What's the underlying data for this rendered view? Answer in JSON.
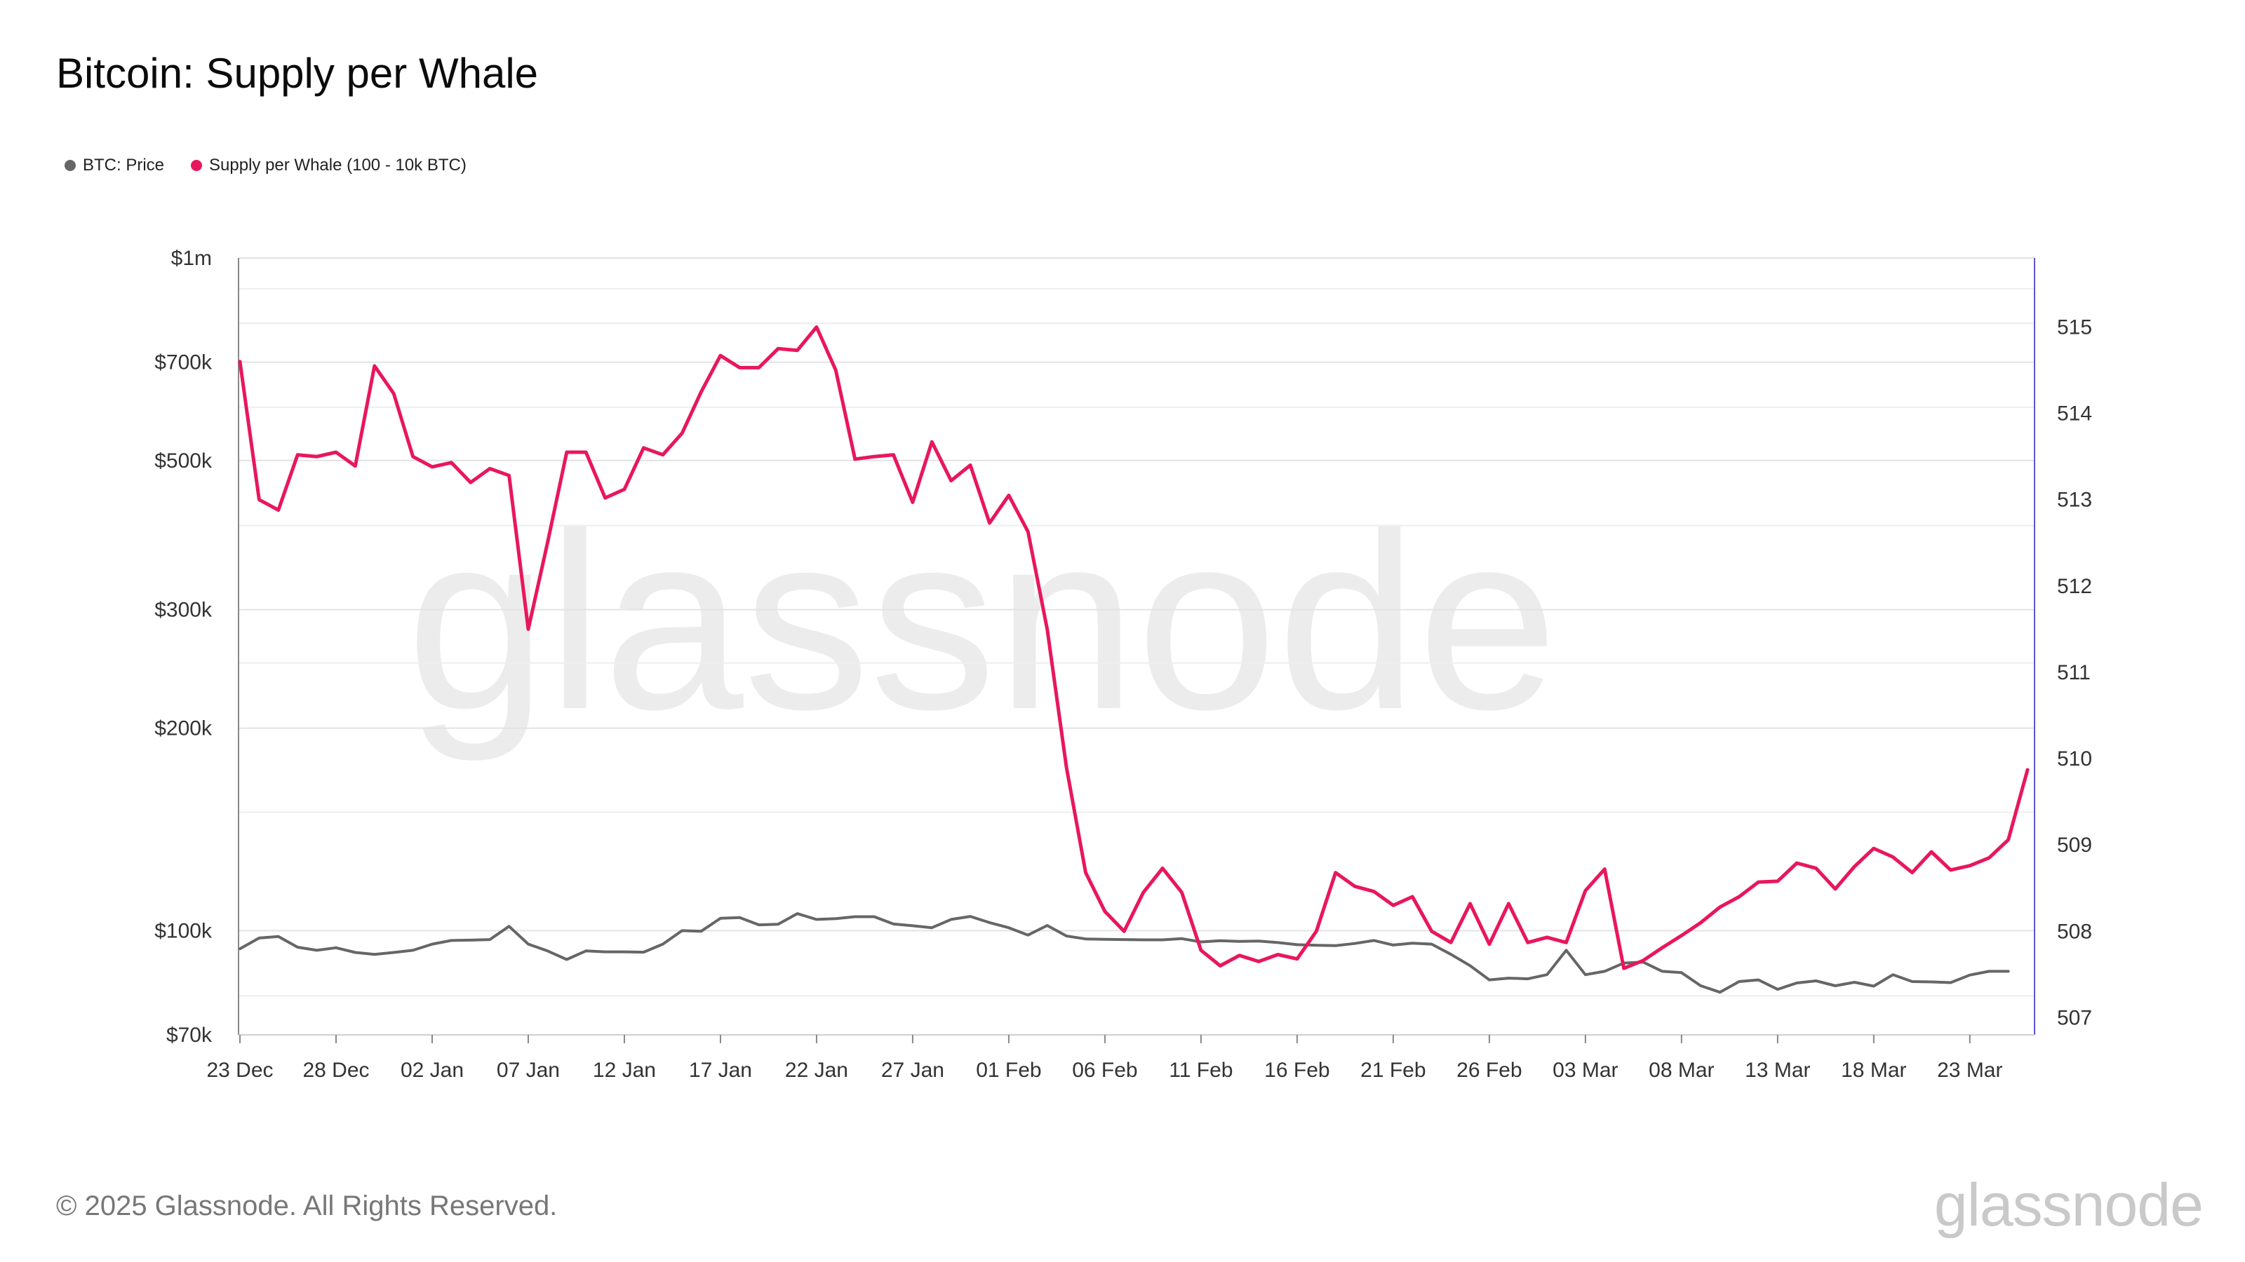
{
  "title": "Bitcoin: Supply per Whale",
  "legend": [
    {
      "label": "BTC: Price",
      "color": "#666666"
    },
    {
      "label": "Supply per Whale (100 - 10k BTC)",
      "color": "#e8175d"
    }
  ],
  "watermark": "glassnode",
  "footer": {
    "copyright": "© 2025 Glassnode. All Rights Reserved.",
    "logo": "glassnode"
  },
  "chart_data": {
    "type": "line",
    "x_start": "2024-12-23",
    "x_ticks": [
      "23 Dec",
      "28 Dec",
      "02 Jan",
      "07 Jan",
      "12 Jan",
      "17 Jan",
      "22 Jan",
      "27 Jan",
      "01 Feb",
      "06 Feb",
      "11 Feb",
      "16 Feb",
      "21 Feb",
      "26 Feb",
      "03 Mar",
      "08 Mar",
      "13 Mar",
      "18 Mar",
      "23 Mar"
    ],
    "y_left": {
      "scale": "log",
      "range": [
        70000,
        1000000
      ],
      "ticks": [
        {
          "value": 70000,
          "label": "$70k"
        },
        {
          "value": 100000,
          "label": "$100k"
        },
        {
          "value": 200000,
          "label": "$200k"
        },
        {
          "value": 300000,
          "label": "$300k"
        },
        {
          "value": 500000,
          "label": "$500k"
        },
        {
          "value": 700000,
          "label": "$700k"
        },
        {
          "value": 1000000,
          "label": "$1m"
        }
      ]
    },
    "y_right": {
      "scale": "linear",
      "range": [
        506.8,
        515.8
      ],
      "ticks": [
        {
          "value": 507,
          "label": "507"
        },
        {
          "value": 508,
          "label": "508"
        },
        {
          "value": 509,
          "label": "509"
        },
        {
          "value": 510,
          "label": "510"
        },
        {
          "value": 511,
          "label": "511"
        },
        {
          "value": 512,
          "label": "512"
        },
        {
          "value": 513,
          "label": "513"
        },
        {
          "value": 514,
          "label": "514"
        },
        {
          "value": 515,
          "label": "515"
        }
      ]
    },
    "grid": true,
    "series": [
      {
        "name": "BTC: Price",
        "axis": "left",
        "color": "#666666",
        "values": [
          94000,
          97500,
          98000,
          94500,
          93500,
          94300,
          92800,
          92200,
          92800,
          93500,
          95500,
          96700,
          96800,
          97000,
          101500,
          95500,
          93300,
          90600,
          93300,
          93000,
          93000,
          92900,
          95500,
          100000,
          99800,
          104300,
          104600,
          102000,
          102200,
          106000,
          103900,
          104200,
          104900,
          104900,
          102300,
          101700,
          101000,
          103900,
          105000,
          102800,
          101000,
          98500,
          101800,
          98200,
          97200,
          97100,
          97000,
          96900,
          96900,
          97300,
          96200,
          96600,
          96400,
          96500,
          96000,
          95300,
          95100,
          95000,
          95700,
          96700,
          95200,
          95800,
          95500,
          92200,
          88700,
          84500,
          85000,
          84800,
          86000,
          93500,
          86000,
          87000,
          89500,
          89800,
          87000,
          86600,
          82800,
          81000,
          84000,
          84500,
          81800,
          83600,
          84200,
          82800,
          83800,
          82700,
          86000,
          84000,
          83900,
          83700,
          85900,
          87000,
          87000
        ]
      },
      {
        "name": "Supply per Whale (100 - 10k BTC)",
        "axis": "right",
        "color": "#e8175d",
        "values": [
          514.6,
          513.0,
          512.88,
          513.52,
          513.5,
          513.55,
          513.39,
          514.55,
          514.23,
          513.5,
          513.38,
          513.43,
          513.2,
          513.36,
          513.28,
          511.5,
          512.5,
          513.55,
          513.55,
          513.02,
          513.12,
          513.6,
          513.52,
          513.77,
          514.25,
          514.67,
          514.53,
          514.53,
          514.75,
          514.73,
          515.0,
          514.5,
          513.47,
          513.5,
          513.52,
          512.97,
          513.67,
          513.22,
          513.4,
          512.73,
          513.05,
          512.63,
          511.5,
          509.9,
          508.68,
          508.23,
          508.0,
          508.45,
          508.73,
          508.45,
          507.78,
          507.6,
          507.72,
          507.65,
          507.73,
          507.68,
          508.0,
          508.68,
          508.52,
          508.46,
          508.3,
          508.4,
          508.0,
          507.87,
          508.32,
          507.85,
          508.32,
          507.87,
          507.93,
          507.87,
          508.47,
          508.72,
          507.57,
          507.66,
          507.81,
          507.95,
          508.1,
          508.28,
          508.4,
          508.57,
          508.58,
          508.79,
          508.73,
          508.49,
          508.75,
          508.96,
          508.86,
          508.68,
          508.92,
          508.71,
          508.76,
          508.85,
          509.06,
          509.87
        ]
      }
    ]
  }
}
